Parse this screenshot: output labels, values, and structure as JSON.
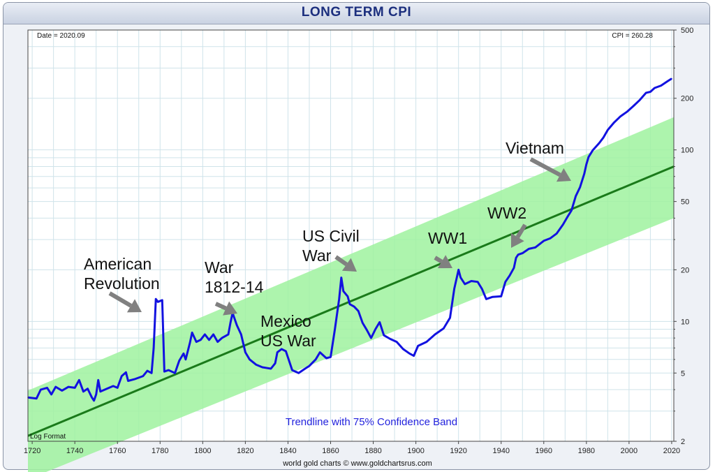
{
  "chart_data": {
    "type": "line",
    "title": "LONG TERM CPI",
    "date_label": "Date = 2020.09",
    "cpi_label": "CPI = 260.28",
    "log_format_label": "Log Format",
    "band_label": "Trendline with 75% Confidence Band",
    "credit": "world gold charts © www.goldchartsrus.com",
    "y_scale": "log",
    "ylim": [
      2,
      500
    ],
    "xlim": [
      1718,
      2021
    ],
    "grid": true,
    "y_ticks": [
      2,
      5,
      10,
      20,
      50,
      100,
      200,
      500
    ],
    "x_ticks": [
      1720,
      1740,
      1760,
      1780,
      1800,
      1820,
      1840,
      1860,
      1880,
      1900,
      1920,
      1940,
      1960,
      1980,
      2000,
      2020
    ],
    "colors": {
      "cpi": "#1212e0",
      "trend": "#1a7a1a",
      "band": "#9ff29f",
      "arrow": "#808080"
    },
    "trendline": {
      "x": [
        1718,
        2021
      ],
      "y": [
        2.15,
        80
      ]
    },
    "band_upper": {
      "x": [
        1718,
        2021
      ],
      "y": [
        3.95,
        155
      ]
    },
    "band_lower": {
      "x": [
        1718,
        2021
      ],
      "y": [
        1.2,
        40
      ]
    },
    "series": [
      {
        "values": [
          [
            1718,
            3.6
          ],
          [
            1722,
            3.55
          ],
          [
            1724,
            4.0
          ],
          [
            1727,
            4.1
          ],
          [
            1729,
            3.75
          ],
          [
            1731,
            4.15
          ],
          [
            1734,
            3.95
          ],
          [
            1737,
            4.15
          ],
          [
            1740,
            4.1
          ],
          [
            1742,
            4.55
          ],
          [
            1744,
            3.9
          ],
          [
            1746,
            4.05
          ],
          [
            1748,
            3.6
          ],
          [
            1749,
            3.45
          ],
          [
            1750,
            3.75
          ],
          [
            1751,
            4.55
          ],
          [
            1752,
            3.9
          ],
          [
            1755,
            4.05
          ],
          [
            1758,
            4.2
          ],
          [
            1760,
            4.1
          ],
          [
            1762,
            4.8
          ],
          [
            1764,
            5.05
          ],
          [
            1765,
            4.5
          ],
          [
            1768,
            4.6
          ],
          [
            1772,
            4.8
          ],
          [
            1774,
            5.15
          ],
          [
            1776,
            5.0
          ],
          [
            1777,
            7.0
          ],
          [
            1778,
            13.5
          ],
          [
            1779,
            13.0
          ],
          [
            1781,
            13.3
          ],
          [
            1782,
            5.1
          ],
          [
            1784,
            5.2
          ],
          [
            1787,
            5.0
          ],
          [
            1789,
            5.9
          ],
          [
            1791,
            6.5
          ],
          [
            1792,
            6.0
          ],
          [
            1794,
            7.5
          ],
          [
            1795,
            8.6
          ],
          [
            1797,
            7.6
          ],
          [
            1799,
            7.8
          ],
          [
            1801,
            8.4
          ],
          [
            1803,
            7.8
          ],
          [
            1805,
            8.4
          ],
          [
            1807,
            7.6
          ],
          [
            1809,
            8.0
          ],
          [
            1812,
            8.4
          ],
          [
            1813,
            9.8
          ],
          [
            1814,
            11.2
          ],
          [
            1816,
            9.5
          ],
          [
            1818,
            8.4
          ],
          [
            1820,
            6.6
          ],
          [
            1822,
            6.0
          ],
          [
            1825,
            5.6
          ],
          [
            1828,
            5.4
          ],
          [
            1832,
            5.3
          ],
          [
            1834,
            5.7
          ],
          [
            1835,
            6.6
          ],
          [
            1837,
            6.9
          ],
          [
            1839,
            6.7
          ],
          [
            1842,
            5.2
          ],
          [
            1845,
            5.0
          ],
          [
            1848,
            5.3
          ],
          [
            1850,
            5.5
          ],
          [
            1853,
            6.0
          ],
          [
            1855,
            6.6
          ],
          [
            1858,
            6.1
          ],
          [
            1860,
            6.2
          ],
          [
            1862,
            9.0
          ],
          [
            1864,
            13.5
          ],
          [
            1865,
            18.0
          ],
          [
            1866,
            15.0
          ],
          [
            1868,
            14.0
          ],
          [
            1869,
            12.6
          ],
          [
            1871,
            12.2
          ],
          [
            1873,
            11.5
          ],
          [
            1875,
            9.8
          ],
          [
            1877,
            8.9
          ],
          [
            1879,
            8.0
          ],
          [
            1881,
            9.0
          ],
          [
            1883,
            9.9
          ],
          [
            1885,
            8.3
          ],
          [
            1888,
            7.9
          ],
          [
            1891,
            7.6
          ],
          [
            1894,
            6.9
          ],
          [
            1897,
            6.5
          ],
          [
            1899,
            6.3
          ],
          [
            1901,
            7.2
          ],
          [
            1905,
            7.6
          ],
          [
            1909,
            8.4
          ],
          [
            1913,
            9.1
          ],
          [
            1916,
            10.5
          ],
          [
            1918,
            15.5
          ],
          [
            1920,
            20.0
          ],
          [
            1921,
            18.0
          ],
          [
            1923,
            16.5
          ],
          [
            1926,
            17.2
          ],
          [
            1929,
            17.0
          ],
          [
            1931,
            15.5
          ],
          [
            1933,
            13.5
          ],
          [
            1936,
            13.9
          ],
          [
            1940,
            14.0
          ],
          [
            1942,
            17.0
          ],
          [
            1944,
            18.5
          ],
          [
            1946,
            20.5
          ],
          [
            1947,
            23.5
          ],
          [
            1948,
            24.5
          ],
          [
            1950,
            25.0
          ],
          [
            1953,
            26.5
          ],
          [
            1956,
            27.0
          ],
          [
            1960,
            29.5
          ],
          [
            1963,
            30.5
          ],
          [
            1966,
            32.5
          ],
          [
            1969,
            36.7
          ],
          [
            1971,
            40.5
          ],
          [
            1973,
            44.4
          ],
          [
            1975,
            53.8
          ],
          [
            1977,
            60.6
          ],
          [
            1979,
            72.6
          ],
          [
            1980,
            82.4
          ],
          [
            1981,
            90.9
          ],
          [
            1983,
            99.6
          ],
          [
            1986,
            109.6
          ],
          [
            1988,
            118.3
          ],
          [
            1990,
            130.7
          ],
          [
            1993,
            144.5
          ],
          [
            1996,
            156.9
          ],
          [
            1999,
            166.6
          ],
          [
            2002,
            179.9
          ],
          [
            2005,
            195.3
          ],
          [
            2008,
            215.3
          ],
          [
            2010,
            218.1
          ],
          [
            2012,
            229.6
          ],
          [
            2015,
            237.0
          ],
          [
            2018,
            251.1
          ],
          [
            2020,
            260.3
          ]
        ]
      }
    ],
    "annotations": [
      {
        "text": [
          "American",
          "Revolution"
        ]
      },
      {
        "text": [
          "War",
          "1812-14"
        ]
      },
      {
        "text": [
          "Mexico",
          "US War"
        ]
      },
      {
        "text": [
          "US Civil",
          "War"
        ]
      },
      {
        "text": [
          "WW1"
        ]
      },
      {
        "text": [
          "WW2"
        ]
      },
      {
        "text": [
          "Vietnam"
        ]
      }
    ]
  }
}
